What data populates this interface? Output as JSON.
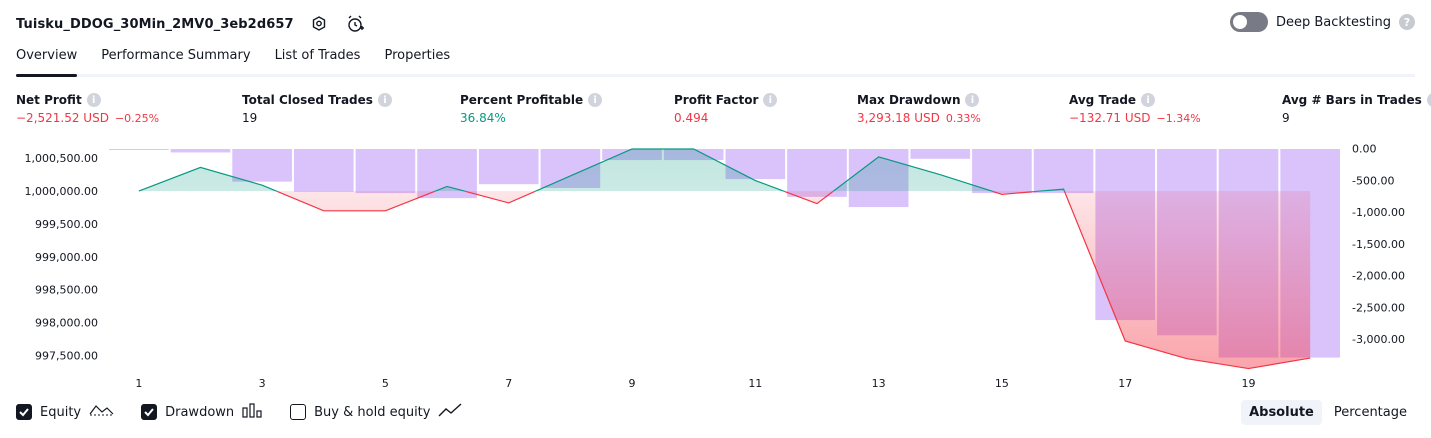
{
  "header": {
    "strategy_name": "Tuisku_DDOG_30Min_2MV0_3eb2d657",
    "deep_backtesting_label": "Deep Backtesting",
    "icons": [
      "settings-icon",
      "alarm-add-icon",
      "help-icon"
    ]
  },
  "tabs": [
    {
      "label": "Overview",
      "active": true
    },
    {
      "label": "Performance Summary",
      "active": false
    },
    {
      "label": "List of Trades",
      "active": false
    },
    {
      "label": "Properties",
      "active": false
    }
  ],
  "metrics": [
    {
      "label": "Net Profit",
      "value": "−2,521.52 USD",
      "pct": "−0.25%",
      "tone": "neg"
    },
    {
      "label": "Total Closed Trades",
      "value": "19",
      "pct": "",
      "tone": "neutral"
    },
    {
      "label": "Percent Profitable",
      "value": "36.84%",
      "pct": "",
      "tone": "pos"
    },
    {
      "label": "Profit Factor",
      "value": "0.494",
      "pct": "",
      "tone": "neg"
    },
    {
      "label": "Max Drawdown",
      "value": "3,293.18 USD",
      "pct": "0.33%",
      "tone": "neg"
    },
    {
      "label": "Avg Trade",
      "value": "−132.71 USD",
      "pct": "−1.34%",
      "tone": "neg"
    },
    {
      "label": "Avg # Bars in Trades",
      "value": "9",
      "pct": "",
      "tone": "neutral"
    }
  ],
  "chart_data": {
    "type": "line",
    "x": [
      1,
      2,
      3,
      4,
      5,
      6,
      7,
      8,
      9,
      10,
      11,
      12,
      13,
      14,
      15,
      16,
      17,
      18,
      19,
      20
    ],
    "x_ticks": [
      "1",
      "3",
      "5",
      "7",
      "9",
      "11",
      "13",
      "15",
      "17",
      "19"
    ],
    "left_ticks": [
      "1,000,500.00",
      "1,000,000.00",
      "999,500.00",
      "999,000.00",
      "998,500.00",
      "998,000.00",
      "997,500.00"
    ],
    "right_ticks": [
      "0.00",
      "-500.00",
      "-1,000.00",
      "-1,500.00",
      "-2,000.00",
      "-2,500.00",
      "-3,000.00"
    ],
    "ylim_left": [
      997400,
      1000640
    ],
    "ylim_right": [
      -3360,
      -6
    ],
    "series": [
      {
        "values": [
          1000000,
          1000360,
          1000090,
          999700,
          999700,
          1000070,
          999820,
          1000230,
          1000640,
          1000640,
          1000160,
          999810,
          1000520,
          1000250,
          999950,
          1000030,
          997720,
          997450,
          997300,
          997460
        ]
      },
      {
        "values": [
          -6,
          -60,
          -520,
          -680,
          -700,
          -780,
          -560,
          -620,
          -180,
          -180,
          -480,
          -760,
          -920,
          -160,
          -700,
          -700,
          -2700,
          -2940,
          -3290,
          -3290
        ]
      }
    ],
    "colors": {
      "equity_up": "#089981",
      "equity_down": "#f23645",
      "drawdown": "#d1b3fa"
    }
  },
  "legend": [
    {
      "label": "Equity",
      "checked": true,
      "icon": "equity-area-icon"
    },
    {
      "label": "Drawdown",
      "checked": true,
      "icon": "drawdown-bars-icon"
    },
    {
      "label": "Buy & hold equity",
      "checked": false,
      "icon": "buy-hold-line-icon"
    }
  ],
  "mode": {
    "options": [
      "Absolute",
      "Percentage"
    ],
    "selected": "Absolute"
  }
}
